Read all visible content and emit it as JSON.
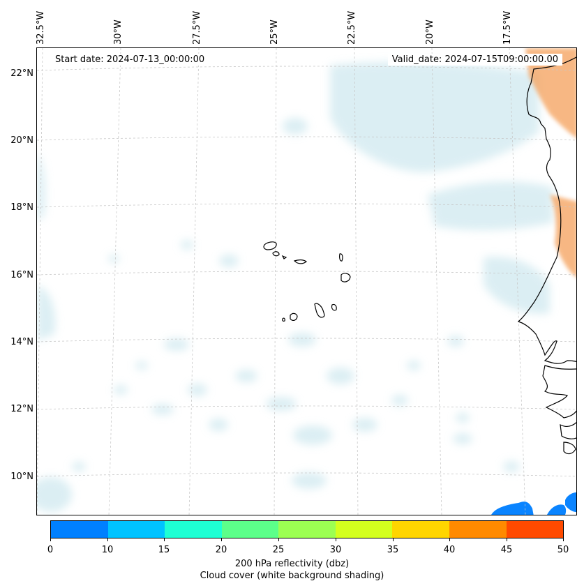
{
  "header": {
    "start_date": "Start date: 2024-07-13_00:00:00",
    "valid_date": "Valid_date: 2024-07-15T09:00:00.00"
  },
  "lon_labels": [
    "32.5°W",
    "30°W",
    "27.5°W",
    "25°W",
    "22.5°W",
    "20°W",
    "17.5°W"
  ],
  "lat_labels": [
    "22°N",
    "20°N",
    "18°N",
    "16°N",
    "14°N",
    "12°N",
    "10°N"
  ],
  "colorbar": {
    "colors": [
      "#0080ff",
      "#00c3ff",
      "#1effd4",
      "#5cff8a",
      "#9cff52",
      "#d4ff1e",
      "#ffd500",
      "#ff8a00",
      "#ff4a00"
    ],
    "ticks": [
      "0",
      "10",
      "15",
      "20",
      "25",
      "30",
      "35",
      "40",
      "45",
      "50"
    ],
    "label": "200 hPa reflectivity (dbz)",
    "sublabel": "Cloud cover (white background shading)"
  },
  "map": {
    "cloud_color": "#bfe1ea",
    "dust_color": "#f5a05a",
    "reflectivity_color": "#0a84ff",
    "coastline_color": "#000000",
    "grid_color": "#c8c8c8"
  }
}
